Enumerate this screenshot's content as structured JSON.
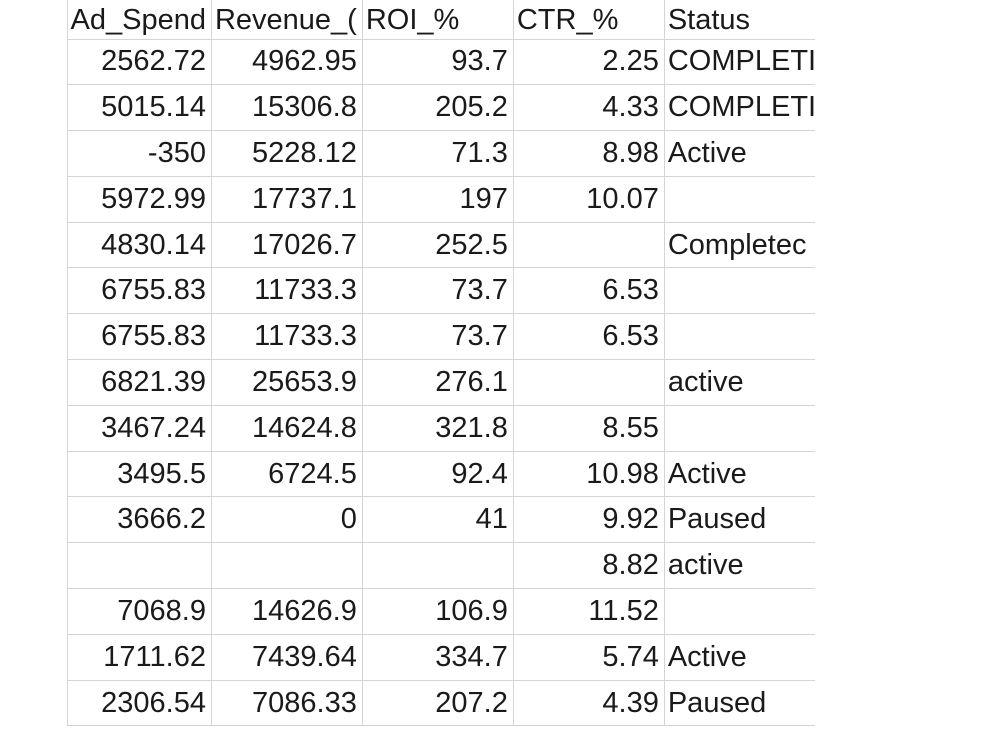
{
  "sheet": {
    "headers": [
      "Ad_Spend",
      "Revenue_(",
      "ROI_%",
      "CTR_%",
      "Status"
    ],
    "rows": [
      [
        "2562.72",
        "4962.95",
        "93.7",
        "2.25",
        "COMPLETI"
      ],
      [
        "5015.14",
        "15306.8",
        "205.2",
        "4.33",
        "COMPLETI"
      ],
      [
        "-350",
        "5228.12",
        "71.3",
        "8.98",
        "Active"
      ],
      [
        "5972.99",
        "17737.1",
        "197",
        "10.07",
        ""
      ],
      [
        "4830.14",
        "17026.7",
        "252.5",
        "",
        "Completec"
      ],
      [
        "6755.83",
        "11733.3",
        "73.7",
        "6.53",
        ""
      ],
      [
        "6755.83",
        "11733.3",
        "73.7",
        "6.53",
        ""
      ],
      [
        "6821.39",
        "25653.9",
        "276.1",
        "",
        "active"
      ],
      [
        "3467.24",
        "14624.8",
        "321.8",
        "8.55",
        ""
      ],
      [
        "3495.5",
        "6724.5",
        "92.4",
        "10.98",
        "Active"
      ],
      [
        "3666.2",
        "0",
        "41",
        "9.92",
        "Paused"
      ],
      [
        "",
        "",
        "",
        "8.82",
        "active"
      ],
      [
        "7068.9",
        "14626.9",
        "106.9",
        "11.52",
        ""
      ],
      [
        "1711.62",
        "7439.64",
        "334.7",
        "5.74",
        "Active"
      ],
      [
        "2306.54",
        "7086.33",
        "207.2",
        "4.39",
        "Paused"
      ]
    ]
  }
}
